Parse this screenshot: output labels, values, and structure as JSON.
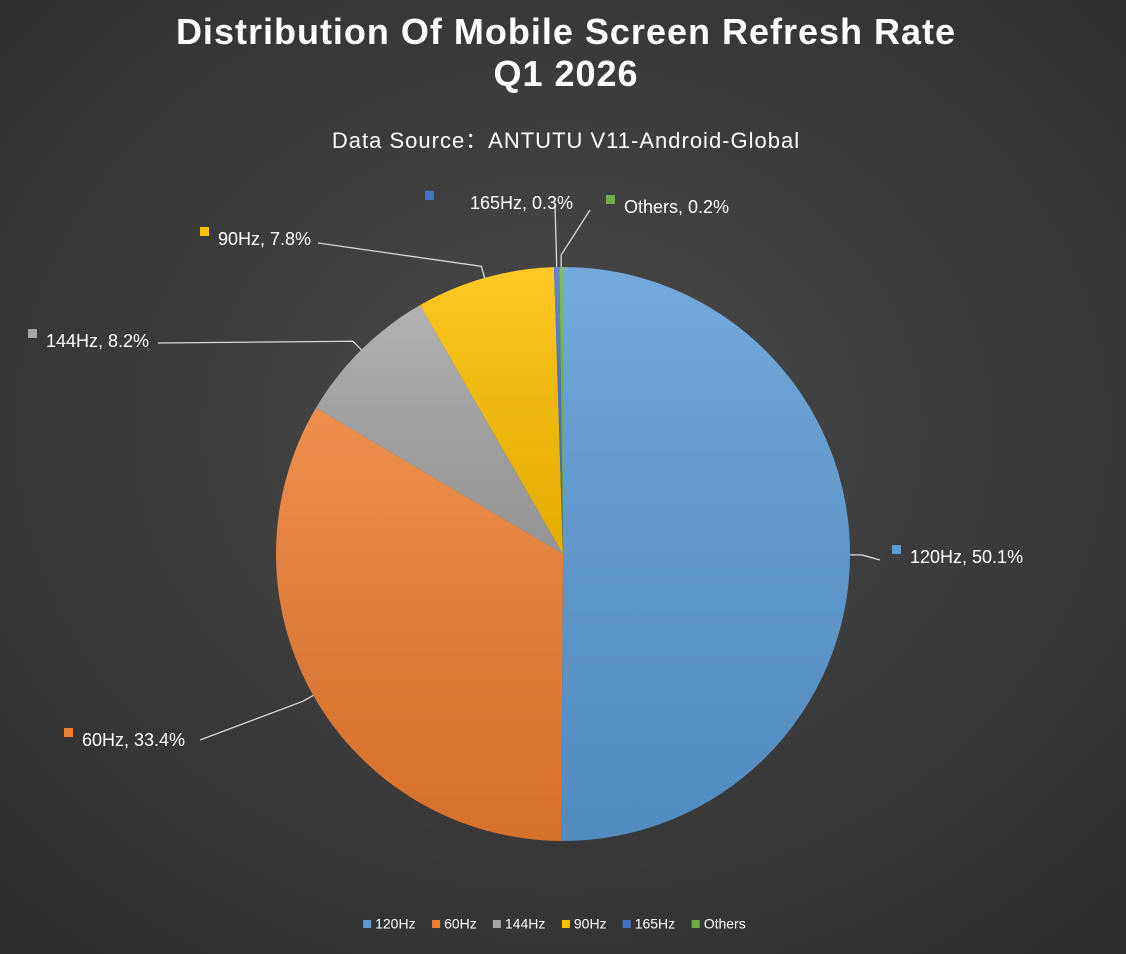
{
  "chart_data": {
    "type": "pie",
    "title": [
      "Distribution Of Mobile Screen Refresh Rate",
      "Q1 2026"
    ],
    "subtitle": "Data Source：ANTUTU V11-Android-Global",
    "categories": [
      "120Hz",
      "60Hz",
      "144Hz",
      "90Hz",
      "165Hz",
      "Others"
    ],
    "values": [
      50.1,
      33.4,
      8.2,
      7.8,
      0.3,
      0.2
    ],
    "value_labels": [
      "120Hz, 50.1%",
      "60Hz, 33.4%",
      "144Hz, 8.2%",
      "90Hz, 7.8%",
      "165Hz, 0.3%",
      "Others, 0.2%"
    ],
    "colors": [
      "#5b9bd5",
      "#ed7d31",
      "#a5a5a5",
      "#ffc000",
      "#4472c4",
      "#70ad47"
    ],
    "legend": "bottom"
  }
}
